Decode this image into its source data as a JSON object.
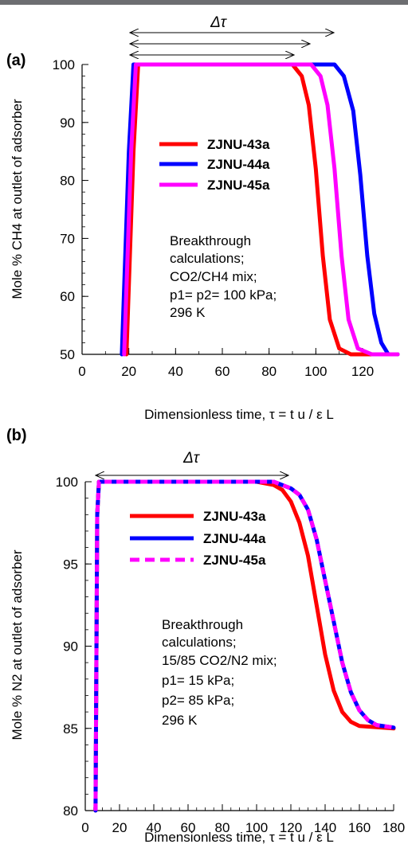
{
  "chart_data": [
    {
      "type": "line",
      "panel_label": "(a)",
      "xlabel": "Dimensionless time, τ = t u / ε L",
      "ylabel": "Mole % CH4 at outlet of adsorber",
      "xlim": [
        0,
        135
      ],
      "ylim": [
        50,
        100
      ],
      "xticks": [
        "0",
        "20",
        "40",
        "60",
        "80",
        "100",
        "120"
      ],
      "yticks": [
        "50",
        "60",
        "70",
        "80",
        "90",
        "100"
      ],
      "grid": false,
      "legend_position": "upper-center",
      "delta_tau_label": "Δτ",
      "annotation": [
        "Breakthrough",
        "calculations;",
        "CO2/CH4 mix;",
        "p1= p2= 100 kPa;",
        "296 K"
      ],
      "series": [
        {
          "name": "ZJNU-43a",
          "color": "#ff0000",
          "dashed": false,
          "x": [
            19,
            22,
            24,
            60,
            90,
            94,
            97,
            100,
            103,
            106,
            110,
            115,
            135
          ],
          "y": [
            50,
            85,
            100,
            100,
            100,
            98,
            93,
            82,
            67,
            56,
            51,
            50,
            50
          ]
        },
        {
          "name": "ZJNU-44a",
          "color": "#0000ff",
          "dashed": false,
          "x": [
            17,
            20,
            22,
            60,
            108,
            112,
            116,
            119,
            122,
            125,
            128,
            131,
            135
          ],
          "y": [
            50,
            85,
            100,
            100,
            100,
            98,
            92,
            81,
            67,
            57,
            52,
            50,
            50
          ]
        },
        {
          "name": "ZJNU-45a",
          "color": "#ff00ff",
          "dashed": false,
          "x": [
            18,
            21,
            23,
            60,
            98,
            102,
            105,
            108,
            111,
            114,
            118,
            124,
            135
          ],
          "y": [
            50,
            85,
            100,
            100,
            100,
            98,
            93,
            82,
            67,
            56,
            51,
            50,
            50
          ]
        }
      ]
    },
    {
      "type": "line",
      "panel_label": "(b)",
      "xlabel": "Dimensionless time, τ = t u / ε L",
      "ylabel": "Mole % N2 at outlet of adsorber",
      "xlim": [
        0,
        180
      ],
      "ylim": [
        80,
        100
      ],
      "xticks": [
        "0",
        "20",
        "40",
        "60",
        "80",
        "100",
        "120",
        "140",
        "160",
        "180"
      ],
      "yticks": [
        "80",
        "85",
        "90",
        "95",
        "100"
      ],
      "grid": false,
      "legend_position": "upper-center",
      "delta_tau_label": "Δτ",
      "annotation": [
        "Breakthrough",
        "calculations;",
        "15/85 CO2/N2 mix;",
        "p1= 15 kPa;",
        "p2= 85 kPa;",
        "296 K"
      ],
      "series": [
        {
          "name": "ZJNU-43a",
          "color": "#ff0000",
          "dashed": false,
          "x": [
            6,
            7,
            8,
            60,
            100,
            110,
            115,
            120,
            125,
            130,
            135,
            140,
            145,
            150,
            155,
            160,
            180
          ],
          "y": [
            80,
            98,
            100,
            100,
            100,
            99.8,
            99.5,
            98.8,
            97.5,
            95.5,
            92.5,
            89.5,
            87.3,
            86,
            85.4,
            85.15,
            85
          ]
        },
        {
          "name": "ZJNU-44a",
          "color": "#0000ff",
          "dashed": false,
          "x": [
            6,
            7,
            8,
            60,
            110,
            120,
            125,
            130,
            135,
            140,
            145,
            150,
            155,
            160,
            165,
            170,
            180
          ],
          "y": [
            80,
            98,
            100,
            100,
            100,
            99.6,
            99.2,
            98.3,
            96.5,
            94,
            91.5,
            89,
            87.2,
            86.1,
            85.5,
            85.2,
            85.05
          ]
        },
        {
          "name": "ZJNU-45a",
          "color": "#ff00ff",
          "dashed": true,
          "x": [
            6,
            7,
            8,
            60,
            110,
            120,
            125,
            130,
            135,
            140,
            145,
            150,
            155,
            160,
            165,
            170,
            180
          ],
          "y": [
            80,
            98,
            100,
            100,
            100,
            99.6,
            99.2,
            98.3,
            96.5,
            94,
            91.5,
            89,
            87.2,
            86.1,
            85.5,
            85.2,
            85.05
          ]
        }
      ]
    }
  ]
}
